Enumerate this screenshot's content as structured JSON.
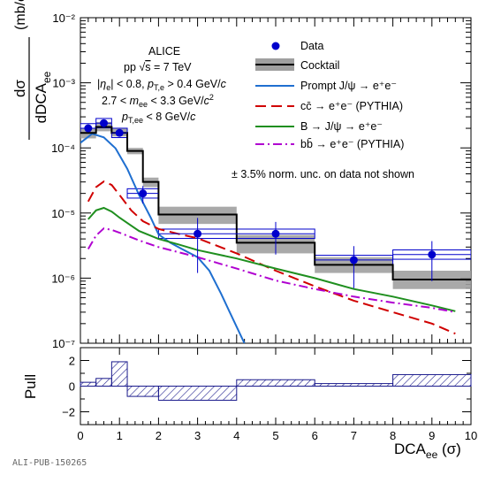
{
  "figure": {
    "id_label": "ALI-PUB-150265",
    "experiment": "ALICE",
    "annotations": [
      "pp √s = 7 TeV",
      "|η_e| < 0.8, p_T,e > 0.4 GeV/c",
      "2.7 < m_ee < 3.3 GeV/c²",
      "p_T,ee < 8 GeV/c"
    ],
    "norm_note": "± 3.5% norm. unc. on data not shown"
  },
  "chart_data": [
    {
      "type": "line",
      "panel": "main",
      "ylabel": "dσ / dDCA_ee (mb/σ)",
      "xlim": [
        0,
        10
      ],
      "ylim": [
        1e-07,
        0.01
      ],
      "yscale": "log",
      "x_ticks": [
        "0",
        "1",
        "2",
        "3",
        "4",
        "5",
        "6",
        "7",
        "8",
        "9",
        "10"
      ],
      "y_ticks": [
        "10⁻⁷",
        "10⁻⁶",
        "10⁻⁵",
        "10⁻⁴",
        "10⁻³",
        "10⁻²"
      ],
      "legend_position": "top-right",
      "data": {
        "name": "Data",
        "color": "#0000cc",
        "points": [
          {
            "x": 0.2,
            "y": 0.0002,
            "xlo": 0.0,
            "xhi": 0.4,
            "stat": 2e-05
          },
          {
            "x": 0.6,
            "y": 0.00024,
            "xlo": 0.4,
            "xhi": 0.8,
            "stat": 3e-05
          },
          {
            "x": 1.0,
            "y": 0.00017,
            "xlo": 0.8,
            "xhi": 1.2,
            "stat": 2e-05
          },
          {
            "x": 1.6,
            "y": 2e-05,
            "xlo": 1.2,
            "xhi": 2.0,
            "stat": 6e-06
          },
          {
            "x": 3.0,
            "y": 4.8e-06,
            "xlo": 2.0,
            "xhi": 4.0,
            "stat": 3.6e-06
          },
          {
            "x": 5.0,
            "y": 4.8e-06,
            "xlo": 4.0,
            "xhi": 6.0,
            "stat": 2.5e-06
          },
          {
            "x": 7.0,
            "y": 1.9e-06,
            "xlo": 6.0,
            "xhi": 8.0,
            "stat": 1.2e-06
          },
          {
            "x": 9.0,
            "y": 2.3e-06,
            "xlo": 8.0,
            "xhi": 10.0,
            "stat": 1.4e-06
          }
        ]
      },
      "cocktail": {
        "name": "Cocktail",
        "color": "#000000",
        "band_color": "#a0a0a0",
        "bins": [
          {
            "xlo": 0.0,
            "xhi": 0.4,
            "y": 0.00017,
            "ylo": 0.00014,
            "yhi": 0.0002
          },
          {
            "xlo": 0.4,
            "xhi": 0.8,
            "y": 0.00021,
            "ylo": 0.00018,
            "yhi": 0.00025
          },
          {
            "xlo": 0.8,
            "xhi": 1.2,
            "y": 0.00017,
            "ylo": 0.00015,
            "yhi": 0.0002
          },
          {
            "xlo": 1.2,
            "xhi": 1.6,
            "y": 9e-05,
            "ylo": 8e-05,
            "yhi": 0.0001
          },
          {
            "xlo": 1.6,
            "xhi": 2.0,
            "y": 3e-05,
            "ylo": 2.5e-05,
            "yhi": 3.5e-05
          },
          {
            "xlo": 2.0,
            "xhi": 4.0,
            "y": 9.5e-06,
            "ylo": 6.8e-06,
            "yhi": 1.25e-05
          },
          {
            "xlo": 4.0,
            "xhi": 6.0,
            "y": 3.5e-06,
            "ylo": 2.4e-06,
            "yhi": 4.6e-06
          },
          {
            "xlo": 6.0,
            "xhi": 8.0,
            "y": 1.6e-06,
            "ylo": 1.2e-06,
            "yhi": 2.1e-06
          },
          {
            "xlo": 8.0,
            "xhi": 10.0,
            "y": 9.5e-07,
            "ylo": 6.8e-07,
            "yhi": 1.3e-06
          }
        ]
      },
      "series": [
        {
          "name": "Prompt J/ψ → e⁺e⁻",
          "color": "#1f6fd0",
          "dash": "solid",
          "x": [
            0.0,
            0.3,
            0.6,
            0.9,
            1.2,
            1.5,
            1.8,
            2.0,
            2.3,
            2.6,
            3.0,
            3.3,
            3.6,
            3.8,
            4.2
          ],
          "y": [
            0.00012,
            0.000165,
            0.000145,
            9.85e-05,
            4.8e-05,
            1.9e-05,
            8.5e-06,
            4.7e-06,
            3.5e-06,
            2.8e-06,
            2.1e-06,
            1.3e-06,
            5.8e-07,
            3.2e-07,
            1e-07
          ]
        },
        {
          "name": "cc̄ → e⁺e⁻ (PYTHIA)",
          "color": "#d00000",
          "dash": "long-dash",
          "x": [
            0.2,
            0.4,
            0.6,
            0.8,
            1.0,
            1.3,
            1.6,
            2.0,
            2.5,
            3.0,
            4.0,
            5.0,
            6.0,
            7.0,
            8.0,
            9.0,
            9.6
          ],
          "y": [
            1.5e-05,
            2.5e-05,
            3.05e-05,
            2.7e-05,
            1.9e-05,
            1.1e-05,
            7.5e-06,
            5.7e-06,
            4.8e-06,
            4.1e-06,
            2.4e-06,
            1.3e-06,
            7.5e-07,
            4.5e-07,
            3e-07,
            2e-07,
            1.4e-07
          ]
        },
        {
          "name": "B → J/ψ → e⁺e⁻",
          "color": "#1f8f1f",
          "dash": "solid",
          "x": [
            0.2,
            0.4,
            0.6,
            0.8,
            1.0,
            1.5,
            2.0,
            2.5,
            3.0,
            4.0,
            5.0,
            6.0,
            7.0,
            8.0,
            9.0,
            9.6
          ],
          "y": [
            8e-06,
            1.1e-05,
            1.2e-05,
            1.05e-05,
            8.5e-06,
            5.3e-06,
            4e-06,
            3.3e-06,
            2.7e-06,
            2e-06,
            1.4e-06,
            1e-06,
            6.8e-07,
            5.2e-07,
            3.8e-07,
            3.1e-07
          ]
        },
        {
          "name": "bb̄ → e⁺e⁻ (PYTHIA)",
          "color": "#b000d0",
          "dash": "dash-dot",
          "x": [
            0.2,
            0.4,
            0.6,
            0.8,
            1.0,
            1.5,
            2.0,
            3.0,
            4.0,
            5.0,
            6.0,
            7.0,
            8.0,
            9.0,
            9.6
          ],
          "y": [
            2.8e-06,
            4.5e-06,
            5.8e-06,
            5.5e-06,
            5e-06,
            3.8e-06,
            3e-06,
            2.1e-06,
            1.4e-06,
            9.2e-07,
            6.8e-07,
            5.2e-07,
            4.2e-07,
            3.5e-07,
            3e-07
          ]
        }
      ]
    },
    {
      "type": "bar",
      "panel": "ratio",
      "ylabel": "Pull",
      "xlabel": "DCA_ee (σ)",
      "xlim": [
        0,
        10
      ],
      "ylim": [
        -3,
        3
      ],
      "y_ticks": [
        "−2",
        "0",
        "2"
      ],
      "color": "#1a1a8c",
      "bins": [
        {
          "xlo": 0.0,
          "xhi": 0.4,
          "value": 0.3
        },
        {
          "xlo": 0.4,
          "xhi": 0.8,
          "value": 0.6
        },
        {
          "xlo": 0.8,
          "xhi": 1.2,
          "value": 1.9
        },
        {
          "xlo": 1.2,
          "xhi": 2.0,
          "value": -0.8
        },
        {
          "xlo": 2.0,
          "xhi": 4.0,
          "value": -1.1
        },
        {
          "xlo": 4.0,
          "xhi": 6.0,
          "value": 0.5
        },
        {
          "xlo": 6.0,
          "xhi": 8.0,
          "value": 0.2
        },
        {
          "xlo": 8.0,
          "xhi": 10.0,
          "value": 0.9
        }
      ]
    }
  ]
}
